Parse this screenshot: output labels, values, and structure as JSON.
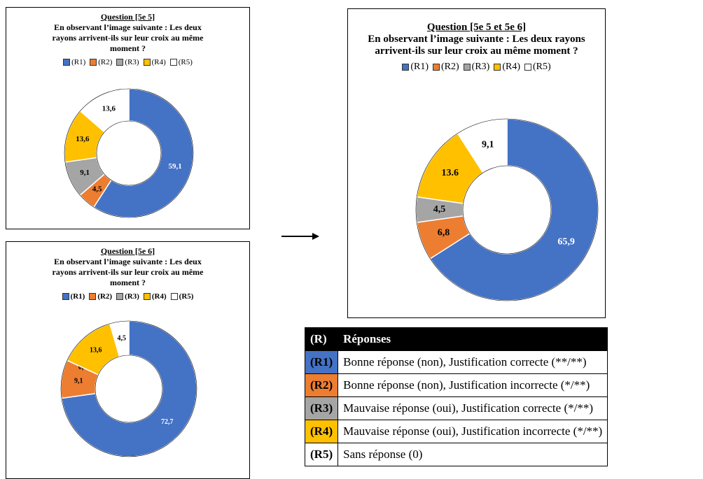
{
  "chart_data": [
    {
      "type": "pie",
      "donut": true,
      "title": "Question [5e 5]",
      "subtitle": "En observant l’image suivante : Les deux rayons arrivent-ils sur leur croix au même moment ?",
      "categories": [
        "(R1)",
        "(R2)",
        "(R3)",
        "(R4)",
        "(R5)"
      ],
      "values": [
        59.1,
        4.5,
        9.1,
        13.6,
        13.6
      ],
      "value_labels": [
        "59,1",
        "4,5",
        "9,1",
        "13,6",
        "13,6"
      ],
      "colors": [
        "#4472c4",
        "#ed7d31",
        "#a5a5a5",
        "#ffc000",
        "#ffffff"
      ],
      "legend": "top"
    },
    {
      "type": "pie",
      "donut": true,
      "title": "Question [5e 6]",
      "subtitle": "En observant l’image suivante : Les deux rayons arrivent-ils sur leur croix au même moment ?",
      "categories": [
        "(R1)",
        "(R2)",
        "(R3)",
        "(R4)",
        "(R5)"
      ],
      "values": [
        72.7,
        9.1,
        0.0,
        13.6,
        4.5
      ],
      "value_labels": [
        "72,7",
        "9,1",
        "0,0",
        "13,6",
        "4,5"
      ],
      "colors": [
        "#4472c4",
        "#ed7d31",
        "#a5a5a5",
        "#ffc000",
        "#ffffff"
      ],
      "legend": "top"
    },
    {
      "type": "pie",
      "donut": true,
      "title": "Question [5e 5 et 5e 6]",
      "subtitle": "En observant l’image suivante : Les deux rayons arrivent-ils sur leur croix au même moment ?",
      "categories": [
        "(R1)",
        "(R2)",
        "(R3)",
        "(R4)",
        "(R5)"
      ],
      "values": [
        65.9,
        6.8,
        4.5,
        13.6,
        9.1
      ],
      "value_labels": [
        "65,9",
        "6,8",
        "4,5",
        "13.6",
        "9,1"
      ],
      "colors": [
        "#4472c4",
        "#ed7d31",
        "#a5a5a5",
        "#ffc000",
        "#ffffff"
      ],
      "legend": "top"
    }
  ],
  "table": {
    "header": [
      "(R)",
      "Réponses"
    ],
    "rows": [
      [
        "(R1)",
        "Bonne réponse (non), Justification correcte (**/**)"
      ],
      [
        "(R2)",
        "Bonne réponse (non), Justification incorrecte (*/**)"
      ],
      [
        "(R3)",
        "Mauvaise réponse (oui), Justification correcte (*/**)"
      ],
      [
        "(R4)",
        "Mauvaise réponse (oui), Justification incorrecte (*/**)"
      ],
      [
        "(R5)",
        "Sans réponse (0)"
      ]
    ]
  }
}
